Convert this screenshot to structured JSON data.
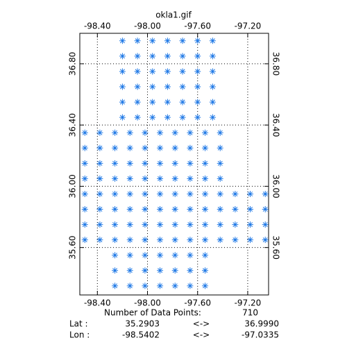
{
  "chart_data": {
    "type": "scatter",
    "title": "okla1.gif",
    "xlim": [
      -98.5402,
      -97.0335
    ],
    "ylim": [
      35.2903,
      36.999
    ],
    "xticks": [
      {
        "value": -98.4,
        "label": "-98.40"
      },
      {
        "value": -98.0,
        "label": "-98.00"
      },
      {
        "value": -97.6,
        "label": "-97.60"
      },
      {
        "value": -97.2,
        "label": "-97.20"
      }
    ],
    "yticks": [
      {
        "value": 35.6,
        "label": "35.60"
      },
      {
        "value": 36.0,
        "label": "36.00"
      },
      {
        "value": 36.4,
        "label": "36.40"
      },
      {
        "value": 36.8,
        "label": "36.80"
      }
    ],
    "grid": true,
    "color": "#1e78e6",
    "x": [
      -98.2,
      -98.08,
      -97.96,
      -97.84,
      -97.72,
      -97.6,
      -97.48,
      -98.2,
      -98.08,
      -97.96,
      -97.84,
      -97.72,
      -97.6,
      -97.48,
      -98.2,
      -98.08,
      -97.96,
      -97.84,
      -97.72,
      -97.6,
      -97.48,
      -98.2,
      -98.08,
      -97.96,
      -97.84,
      -97.72,
      -97.6,
      -97.48,
      -98.2,
      -98.08,
      -97.96,
      -97.84,
      -97.72,
      -97.6,
      -97.48,
      -98.2,
      -98.08,
      -97.96,
      -97.84,
      -97.72,
      -97.6,
      -97.48,
      -98.5,
      -98.38,
      -98.26,
      -98.14,
      -98.02,
      -97.9,
      -97.78,
      -97.66,
      -97.54,
      -97.42,
      -98.5,
      -98.38,
      -98.26,
      -98.14,
      -98.02,
      -97.9,
      -97.78,
      -97.66,
      -97.54,
      -97.42,
      -98.5,
      -98.38,
      -98.26,
      -98.14,
      -98.02,
      -97.9,
      -97.78,
      -97.66,
      -97.54,
      -97.42,
      -98.5,
      -98.38,
      -98.26,
      -98.14,
      -98.02,
      -97.9,
      -97.78,
      -97.66,
      -97.54,
      -97.42,
      -98.5,
      -98.38,
      -98.26,
      -98.14,
      -98.02,
      -97.9,
      -97.78,
      -97.66,
      -97.54,
      -97.42,
      -97.3,
      -97.18,
      -97.06,
      -98.5,
      -98.38,
      -98.26,
      -98.14,
      -98.02,
      -97.9,
      -97.78,
      -97.66,
      -97.54,
      -97.42,
      -97.3,
      -97.18,
      -97.06,
      -98.5,
      -98.38,
      -98.26,
      -98.14,
      -98.02,
      -97.9,
      -97.78,
      -97.66,
      -97.54,
      -97.42,
      -97.3,
      -97.18,
      -97.06,
      -98.5,
      -98.38,
      -98.26,
      -98.14,
      -98.02,
      -97.9,
      -97.78,
      -97.66,
      -97.54,
      -97.42,
      -97.3,
      -97.18,
      -97.06,
      -98.26,
      -98.14,
      -98.02,
      -97.9,
      -97.78,
      -97.66,
      -97.54,
      -98.26,
      -98.14,
      -98.02,
      -97.9,
      -97.78,
      -97.66,
      -97.54,
      -98.26,
      -98.14,
      -98.02,
      -97.9,
      -97.78,
      -97.66,
      -97.54
    ],
    "y": [
      36.95,
      36.95,
      36.95,
      36.95,
      36.95,
      36.95,
      36.95,
      36.85,
      36.85,
      36.85,
      36.85,
      36.85,
      36.85,
      36.85,
      36.75,
      36.75,
      36.75,
      36.75,
      36.75,
      36.75,
      36.75,
      36.65,
      36.65,
      36.65,
      36.65,
      36.65,
      36.65,
      36.65,
      36.55,
      36.55,
      36.55,
      36.55,
      36.55,
      36.55,
      36.55,
      36.45,
      36.45,
      36.45,
      36.45,
      36.45,
      36.45,
      36.45,
      36.35,
      36.35,
      36.35,
      36.35,
      36.35,
      36.35,
      36.35,
      36.35,
      36.35,
      36.35,
      36.25,
      36.25,
      36.25,
      36.25,
      36.25,
      36.25,
      36.25,
      36.25,
      36.25,
      36.25,
      36.15,
      36.15,
      36.15,
      36.15,
      36.15,
      36.15,
      36.15,
      36.15,
      36.15,
      36.15,
      36.05,
      36.05,
      36.05,
      36.05,
      36.05,
      36.05,
      36.05,
      36.05,
      36.05,
      36.05,
      35.95,
      35.95,
      35.95,
      35.95,
      35.95,
      35.95,
      35.95,
      35.95,
      35.95,
      35.95,
      35.95,
      35.95,
      35.95,
      35.85,
      35.85,
      35.85,
      35.85,
      35.85,
      35.85,
      35.85,
      35.85,
      35.85,
      35.85,
      35.85,
      35.85,
      35.85,
      35.75,
      35.75,
      35.75,
      35.75,
      35.75,
      35.75,
      35.75,
      35.75,
      35.75,
      35.75,
      35.75,
      35.75,
      35.75,
      35.65,
      35.65,
      35.65,
      35.65,
      35.65,
      35.65,
      35.65,
      35.65,
      35.65,
      35.65,
      35.65,
      35.65,
      35.65,
      35.55,
      35.55,
      35.55,
      35.55,
      35.55,
      35.55,
      35.55,
      35.45,
      35.45,
      35.45,
      35.45,
      35.45,
      35.45,
      35.45,
      35.35,
      35.35,
      35.35,
      35.35,
      35.35,
      35.35,
      35.35
    ]
  },
  "info": {
    "count_label": "Number of Data Points:",
    "count": 710,
    "lat_label": "Lat :",
    "lat_min": "35.2903",
    "lat_sep": "<->",
    "lat_max": "36.9990",
    "lon_label": "Lon :",
    "lon_min": "-98.5402",
    "lon_sep": "<->",
    "lon_max": "-97.0335"
  }
}
